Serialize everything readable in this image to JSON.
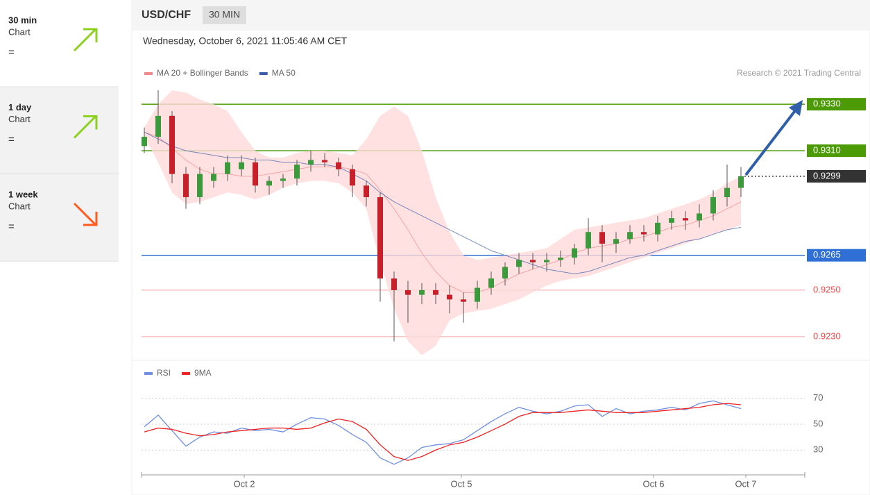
{
  "sidebar": [
    {
      "title": "30 min",
      "sub": "Chart",
      "sign": "=",
      "trend": "up"
    },
    {
      "title": "1 day",
      "sub": "Chart",
      "sign": "=",
      "trend": "up"
    },
    {
      "title": "1 week",
      "sub": "Chart",
      "sign": "=",
      "trend": "down"
    }
  ],
  "header": {
    "symbol": "USD/CHF",
    "timeframe": "30 MIN",
    "date": "Wednesday, October 6, 2021 11:05:46 AM CET",
    "credit": "Research © 2021 Trading Central"
  },
  "chart_data": [
    {
      "type": "candlestick",
      "x": [
        0,
        1,
        2,
        3,
        4,
        5,
        6,
        7,
        8,
        9,
        10,
        11,
        12,
        13,
        14,
        15,
        16,
        17,
        18,
        19,
        20,
        21,
        22,
        23,
        24,
        25,
        26,
        27,
        28,
        29,
        30,
        31,
        32,
        33,
        34,
        35,
        36,
        37,
        38,
        39,
        40,
        41,
        42,
        43
      ],
      "open": [
        0.9312,
        0.9316,
        0.9325,
        0.93,
        0.929,
        0.9297,
        0.93,
        0.9302,
        0.9305,
        0.9295,
        0.9297,
        0.9298,
        0.9304,
        0.9306,
        0.9305,
        0.9302,
        0.9295,
        0.929,
        0.9255,
        0.925,
        0.9248,
        0.925,
        0.9248,
        0.9246,
        0.9245,
        0.9251,
        0.9255,
        0.926,
        0.9263,
        0.9262,
        0.9263,
        0.9264,
        0.9268,
        0.9275,
        0.927,
        0.9272,
        0.9275,
        0.9274,
        0.9279,
        0.9281,
        0.928,
        0.9283,
        0.929,
        0.9294
      ],
      "high": [
        0.932,
        0.9336,
        0.9327,
        0.9303,
        0.9303,
        0.9303,
        0.9308,
        0.9308,
        0.9307,
        0.9299,
        0.93,
        0.9306,
        0.931,
        0.9309,
        0.9307,
        0.9304,
        0.9297,
        0.9292,
        0.9258,
        0.9254,
        0.9253,
        0.9253,
        0.9252,
        0.9249,
        0.9254,
        0.9258,
        0.9262,
        0.9266,
        0.9266,
        0.9266,
        0.9267,
        0.927,
        0.9281,
        0.9278,
        0.9275,
        0.9278,
        0.9278,
        0.9282,
        0.9284,
        0.9284,
        0.9287,
        0.9293,
        0.9304,
        0.9303
      ],
      "low": [
        0.9309,
        0.9313,
        0.9296,
        0.9285,
        0.9287,
        0.9294,
        0.9297,
        0.9299,
        0.9292,
        0.9291,
        0.9294,
        0.9295,
        0.9301,
        0.9303,
        0.9299,
        0.929,
        0.9286,
        0.9245,
        0.9228,
        0.9236,
        0.9244,
        0.9244,
        0.924,
        0.9236,
        0.9242,
        0.9248,
        0.9252,
        0.9257,
        0.9259,
        0.9258,
        0.926,
        0.9261,
        0.9265,
        0.9262,
        0.9266,
        0.927,
        0.9271,
        0.9271,
        0.9276,
        0.9276,
        0.9277,
        0.928,
        0.9286,
        0.929
      ],
      "close": [
        0.9316,
        0.9325,
        0.93,
        0.929,
        0.93,
        0.93,
        0.9305,
        0.9305,
        0.9295,
        0.9297,
        0.9298,
        0.9304,
        0.9306,
        0.9305,
        0.9302,
        0.9295,
        0.929,
        0.9255,
        0.925,
        0.9248,
        0.925,
        0.9248,
        0.9246,
        0.9245,
        0.9251,
        0.9255,
        0.926,
        0.9263,
        0.9262,
        0.9263,
        0.9264,
        0.9268,
        0.9275,
        0.927,
        0.9272,
        0.9275,
        0.9274,
        0.9279,
        0.9281,
        0.928,
        0.9283,
        0.929,
        0.9294,
        0.9299
      ],
      "up_color": "#3c9a3c",
      "down_color": "#c8202a",
      "series": [
        {
          "name": "MA 20 + Bollinger Bands",
          "color": "#f08a8a",
          "band_color": "#ffd9d9",
          "values": [
            0.9318,
            0.9316,
            0.9311,
            0.9306,
            0.9302,
            0.93,
            0.93,
            0.9299,
            0.9299,
            0.93,
            0.9301,
            0.9302,
            0.9303,
            0.9303,
            0.9303,
            0.9302,
            0.93,
            0.9293,
            0.9285,
            0.9276,
            0.9266,
            0.9258,
            0.9252,
            0.9249,
            0.9249,
            0.9251,
            0.9254,
            0.9257,
            0.9259,
            0.9261,
            0.9263,
            0.9266,
            0.9268,
            0.9269,
            0.927,
            0.9272,
            0.9273,
            0.9275,
            0.9277,
            0.9278,
            0.928,
            0.9282,
            0.9285,
            0.9288
          ],
          "upper": [
            0.932,
            0.933,
            0.9336,
            0.9335,
            0.9332,
            0.933,
            0.9327,
            0.9318,
            0.931,
            0.9307,
            0.9307,
            0.9309,
            0.931,
            0.931,
            0.9309,
            0.9308,
            0.9315,
            0.9325,
            0.9329,
            0.9325,
            0.931,
            0.929,
            0.9275,
            0.9265,
            0.9263,
            0.9264,
            0.9265,
            0.9266,
            0.9267,
            0.9268,
            0.9272,
            0.9276,
            0.9277,
            0.9278,
            0.9279,
            0.928,
            0.9281,
            0.9283,
            0.9285,
            0.9287,
            0.9289,
            0.9292,
            0.9296,
            0.9299
          ],
          "lower": [
            0.9316,
            0.9305,
            0.9292,
            0.9287,
            0.9288,
            0.929,
            0.9292,
            0.9291,
            0.9289,
            0.9291,
            0.9294,
            0.9296,
            0.9297,
            0.9297,
            0.9296,
            0.9292,
            0.9285,
            0.9262,
            0.9242,
            0.9228,
            0.9222,
            0.9226,
            0.9237,
            0.924,
            0.9241,
            0.9242,
            0.9244,
            0.9246,
            0.9249,
            0.9252,
            0.9254,
            0.9255,
            0.9256,
            0.9258,
            0.926,
            0.9262,
            0.9264,
            0.9266,
            0.9268,
            0.927,
            0.9272,
            0.9274,
            0.9276,
            0.9278
          ]
        },
        {
          "name": "MA 50",
          "color": "#3a5ea8",
          "values": [
            0.9318,
            0.9315,
            0.9312,
            0.931,
            0.9309,
            0.9308,
            0.9307,
            0.9307,
            0.9306,
            0.9306,
            0.9305,
            0.9305,
            0.9304,
            0.9304,
            0.9303,
            0.93,
            0.9297,
            0.9292,
            0.9288,
            0.9285,
            0.9282,
            0.9279,
            0.9276,
            0.9273,
            0.927,
            0.9267,
            0.9265,
            0.9263,
            0.9261,
            0.9259,
            0.9258,
            0.9257,
            0.9258,
            0.926,
            0.9262,
            0.9264,
            0.9265,
            0.9267,
            0.9269,
            0.9271,
            0.9272,
            0.9274,
            0.9276,
            0.9277
          ]
        }
      ],
      "levels": [
        {
          "value": 0.933,
          "label": "0.9330",
          "color": "#4c9a06",
          "tag": true,
          "dotted": false
        },
        {
          "value": 0.931,
          "label": "0.9310",
          "color": "#4c9a06",
          "tag": true,
          "dotted": false
        },
        {
          "value": 0.9299,
          "label": "0.9299",
          "color": "#333333",
          "tag": true,
          "dotted": true
        },
        {
          "value": 0.9265,
          "label": "0.9265",
          "color": "#2f6fd6",
          "tag": true,
          "dotted": false
        },
        {
          "value": 0.925,
          "label": "0.9250",
          "color": "#f04848",
          "tag": false,
          "dotted": false
        },
        {
          "value": 0.923,
          "label": "0.9230",
          "color": "#f04848",
          "tag": false,
          "dotted": false
        }
      ],
      "xlim": [
        -0.2,
        47.6
      ],
      "ylim": [
        0.9221,
        0.9339
      ]
    },
    {
      "type": "line",
      "x": [
        0,
        1,
        2,
        3,
        4,
        5,
        6,
        7,
        8,
        9,
        10,
        11,
        12,
        13,
        14,
        15,
        16,
        17,
        18,
        19,
        20,
        21,
        22,
        23,
        24,
        25,
        26,
        27,
        28,
        29,
        30,
        31,
        32,
        33,
        34,
        35,
        36,
        37,
        38,
        39,
        40,
        41,
        42,
        43
      ],
      "series": [
        {
          "name": "RSI",
          "color": "#6f8fe0",
          "values": [
            48,
            57,
            45,
            33,
            40,
            44,
            43,
            47,
            45,
            46,
            44,
            50,
            55,
            54,
            49,
            42,
            36,
            24,
            19,
            24,
            32,
            34,
            35,
            38,
            45,
            52,
            58,
            63,
            60,
            58,
            60,
            64,
            65,
            56,
            62,
            58,
            60,
            61,
            63,
            61,
            66,
            68,
            65,
            62
          ]
        },
        {
          "name": "9MA",
          "color": "#ee2222",
          "values": [
            44,
            47,
            46,
            43,
            41,
            42,
            44,
            45,
            46,
            47,
            47,
            46,
            47,
            51,
            54,
            52,
            46,
            34,
            25,
            22,
            25,
            30,
            34,
            36,
            40,
            45,
            50,
            56,
            59,
            59,
            59,
            60,
            61,
            60,
            59,
            59,
            59,
            60,
            61,
            62,
            63,
            65,
            66,
            65
          ]
        }
      ],
      "xlim": [
        -0.2,
        47.6
      ],
      "ylim": [
        13,
        80
      ],
      "yticks": [
        30,
        50,
        70
      ],
      "xticks": [
        {
          "value": 7.2,
          "label": "Oct 2"
        },
        {
          "value": 22.85,
          "label": "Oct 5"
        },
        {
          "value": 36.7,
          "label": "Oct 6"
        },
        {
          "value": 43.35,
          "label": "Oct 7"
        }
      ]
    }
  ]
}
